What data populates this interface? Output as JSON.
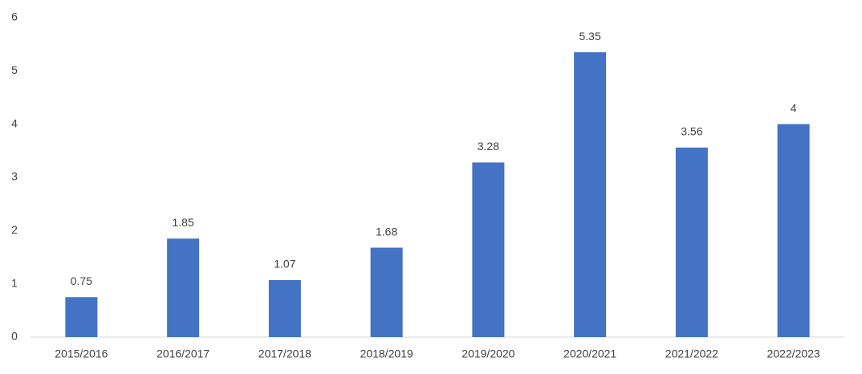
{
  "chart_data": {
    "type": "bar",
    "categories": [
      "2015/2016",
      "2016/2017",
      "2017/2018",
      "2018/2019",
      "2019/2020",
      "2020/2021",
      "2021/2022",
      "2022/2023"
    ],
    "values": [
      0.75,
      1.85,
      1.07,
      1.68,
      3.28,
      5.35,
      3.56,
      4
    ],
    "color": "#4472c4",
    "ylim": [
      0,
      6
    ],
    "yticks": [
      0,
      1,
      2,
      3,
      4,
      5,
      6
    ],
    "grid": false,
    "data_labels": true
  }
}
